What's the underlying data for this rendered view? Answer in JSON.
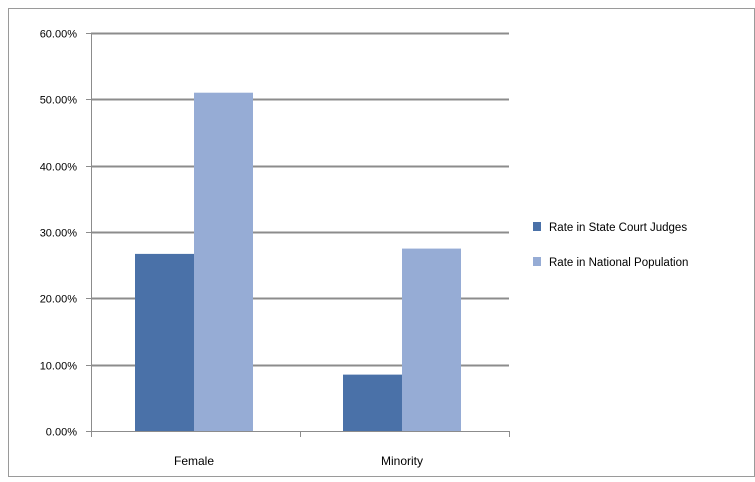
{
  "chart_data": {
    "type": "bar",
    "categories": [
      "Female",
      "Minority"
    ],
    "series": [
      {
        "name": "Rate in State Court Judges",
        "values": [
          0.267,
          0.085
        ],
        "color": "#4a71a8"
      },
      {
        "name": "Rate in National Population",
        "values": [
          0.51,
          0.275
        ],
        "color": "#96acd5"
      }
    ],
    "ylim": [
      0,
      0.6
    ],
    "y_ticks": [
      0,
      0.1,
      0.2,
      0.3,
      0.4,
      0.5,
      0.6
    ],
    "y_tick_labels": [
      "0.00%",
      "10.00%",
      "20.00%",
      "30.00%",
      "40.00%",
      "50.00%",
      "60.00%"
    ],
    "grid": true,
    "legend_position": "right",
    "title": "",
    "xlabel": "",
    "ylabel": ""
  }
}
